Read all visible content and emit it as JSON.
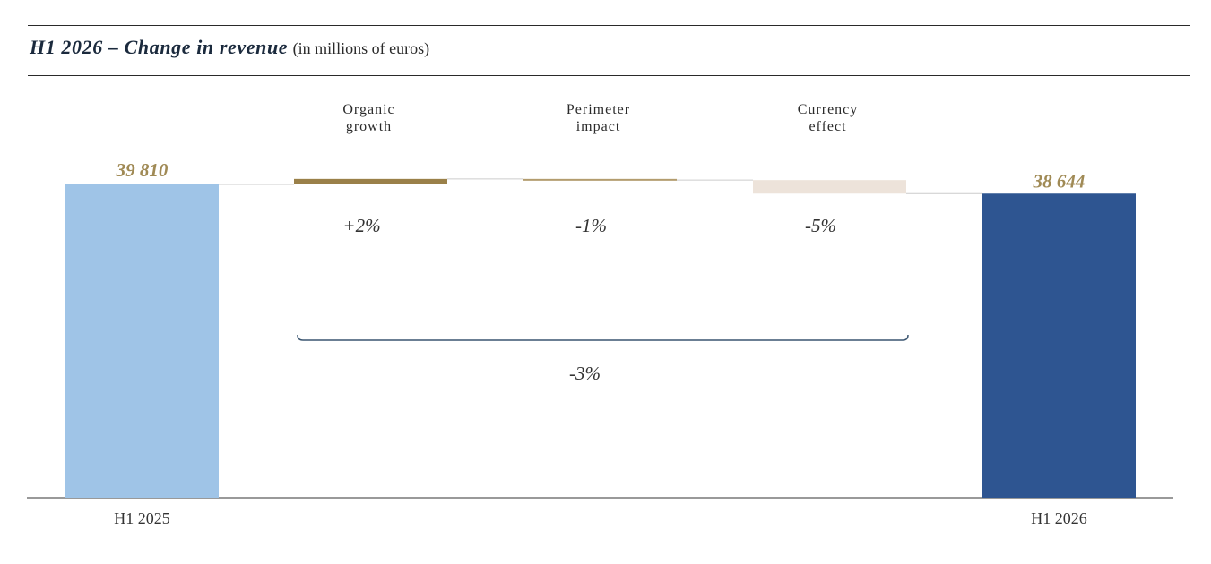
{
  "title": "H1 2026 – Change in revenue",
  "subtitle": "(in millions of euros)",
  "colors": {
    "start_bar": "#9fc4e7",
    "end_bar": "#2e5591",
    "organic": "#9a8049",
    "perimeter": "#b39c6e",
    "currency": "#ede3da",
    "value_label": "#a08a55",
    "pct_label": "#333333",
    "brace": "#3a5570"
  },
  "chart_data": {
    "type": "bar",
    "subtype": "waterfall",
    "categories": [
      "H1 2025",
      "Organic\ngrowth",
      "Perimeter\nimpact",
      "Currency\neffect",
      "H1 2026"
    ],
    "start": {
      "label": "H1 2025",
      "value": 39810,
      "value_label": "39 810"
    },
    "end": {
      "label": "H1 2026",
      "value": 38644,
      "value_label": "38 644"
    },
    "steps": [
      {
        "label": "Organic\ngrowth",
        "pct_label": "+2%",
        "change": 700
      },
      {
        "label": "Perimeter\nimpact",
        "pct_label": "-1%",
        "change": -150
      },
      {
        "label": "Currency\neffect",
        "pct_label": "-5%",
        "change": -1716
      }
    ],
    "total_change_label": "-3%",
    "ylim": [
      0,
      45000
    ]
  }
}
